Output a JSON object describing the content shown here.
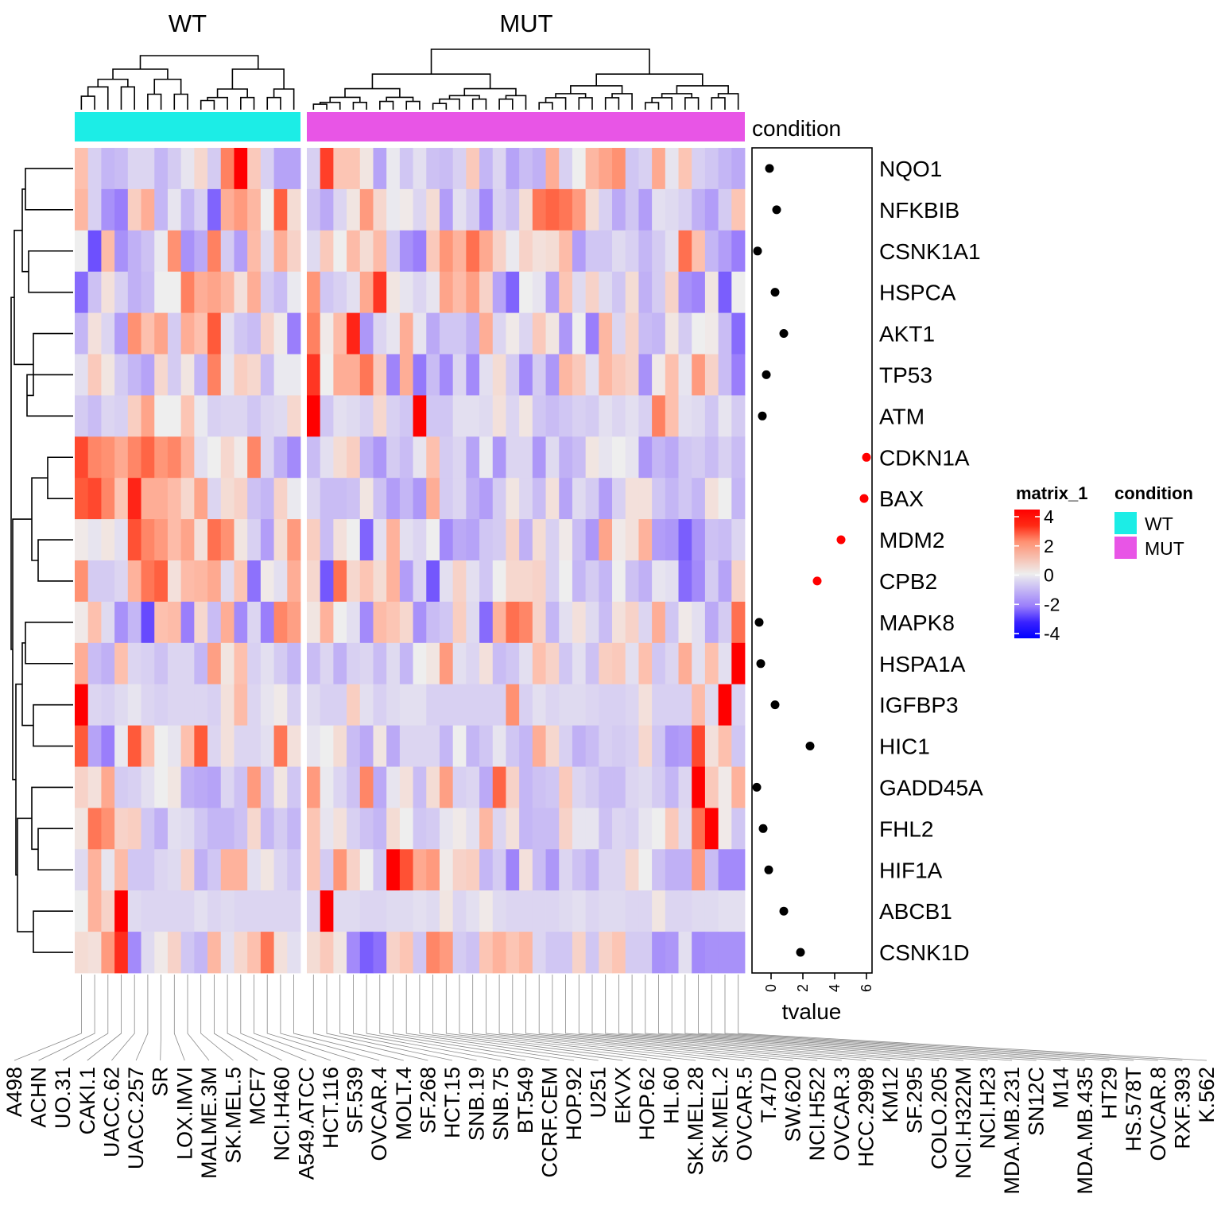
{
  "chart_data": {
    "type": "heatmap",
    "groups": [
      {
        "name": "WT",
        "color": "#1CEDE6"
      },
      {
        "name": "MUT",
        "color": "#E855E6"
      }
    ],
    "annotation_label": "condition",
    "columns_wt": [
      "A498",
      "ACHN",
      "UO.31",
      "CAKI.1",
      "UACC.62",
      "UACC.257",
      "SR",
      "LOX.IMVI",
      "MALME.3M",
      "SK.MEL.5",
      "MCF7",
      "NCI.H460",
      "A549.ATCC",
      "HCT.116",
      "SF.539",
      "OVCAR.4",
      "MOLT.4"
    ],
    "columns_mut": [
      "SF.268",
      "HCT.15",
      "SNB.19",
      "SNB.75",
      "BT.549",
      "CCRF.CEM",
      "HOP.92",
      "U251",
      "EKVX",
      "HOP.62",
      "HL.60",
      "SK.MEL.28",
      "SK.MEL.2",
      "OVCAR.5",
      "T.47D",
      "SW.620",
      "NCI.H522",
      "OVCAR.3",
      "HCC.2998",
      "KM12",
      "SF.295",
      "COLO.205",
      "NCI.H322M",
      "NCI.H23",
      "MDA.MB.231",
      "SN12C",
      "M14",
      "MDA.MB.435",
      "HT29",
      "HS.578T",
      "OVCAR.8",
      "RXF.393",
      "K.562"
    ],
    "rows": [
      "NQO1",
      "NFKBIB",
      "CSNK1A1",
      "HSPCA",
      "AKT1",
      "TP53",
      "ATM",
      "CDKN1A",
      "BAX",
      "MDM2",
      "CPB2",
      "MAPK8",
      "HSPA1A",
      "IGFBP3",
      "HIC1",
      "GADD45A",
      "FHL2",
      "HIF1A",
      "ABCB1",
      "CSNK1D"
    ],
    "matrix": [
      [
        1.0,
        -0.6,
        -1.1,
        -1.0,
        -0.5,
        -0.5,
        -1.1,
        -0.7,
        -0.2,
        0.5,
        -0.7,
        2.3,
        4,
        0.8,
        -0.6,
        -1.4,
        -1.4,
        -0.6,
        3.3,
        0.9,
        0.9,
        0.2,
        -1.4,
        -0.1,
        -0.8,
        -0.3,
        -0.9,
        -1.0,
        -0.6,
        0.8,
        -1.1,
        -0.5,
        -1.4,
        -1.0,
        -1.2,
        1.4,
        -0.6,
        0,
        1.2,
        1.6,
        2.0,
        -0.8,
        -0.6,
        1.5,
        -0.2,
        0.9,
        -0.6,
        -0.8,
        -1.1,
        -1.3
      ],
      [
        1.2,
        -0.6,
        -1.7,
        -2.0,
        0.7,
        1.4,
        -1.1,
        -0.2,
        -1.1,
        -0.6,
        -2.4,
        1.4,
        1.8,
        1.2,
        0,
        2.9,
        0.4,
        -0.9,
        -1.3,
        -0.5,
        0.2,
        1.8,
        0.5,
        -0.1,
        0.1,
        -0.5,
        0.4,
        -1.5,
        -0.3,
        -0.7,
        -1.8,
        -0.6,
        -0.9,
        0.4,
        2.5,
        2.8,
        2.5,
        1.8,
        0.4,
        -0.6,
        -1.3,
        -0.8,
        -1.5,
        -0.3,
        -0.4,
        -0.6,
        -1.2,
        -1.5,
        -0.7,
        0.9
      ],
      [
        0,
        -2.7,
        1.1,
        -1.7,
        -1.2,
        -0.9,
        -0.1,
        2.0,
        -1.7,
        -1.3,
        2.3,
        -0.7,
        -1.5,
        1.1,
        -0.4,
        1.4,
        0.6,
        -0.4,
        0.8,
        0,
        1.1,
        0.4,
        1.1,
        -0.7,
        -1.7,
        -2.0,
        0.8,
        1.9,
        1.3,
        2.6,
        1.5,
        0.6,
        -0.1,
        0.6,
        0.3,
        0.4,
        1.1,
        -1.5,
        -0.8,
        -0.8,
        -0.4,
        -0.6,
        -1.1,
        -0.7,
        -0.3,
        2.6,
        1.0,
        -1.1,
        -1.5,
        -2.0
      ],
      [
        -2.3,
        -0.9,
        0.3,
        -0.6,
        -1.2,
        -1.0,
        0,
        0,
        2.3,
        1.4,
        1.6,
        1.2,
        0.3,
        1.4,
        -0.7,
        -1.0,
        -0.1,
        1.9,
        -0.8,
        -0.6,
        -0.3,
        1.5,
        3.4,
        0.2,
        -0.2,
        -0.5,
        -0.2,
        1.6,
        1.1,
        1.7,
        0.6,
        -1.4,
        -2.4,
        0,
        -0.2,
        -1.5,
        0.9,
        -0.4,
        0.6,
        -0.4,
        -0.8,
        0.4,
        -1.2,
        -0.7,
        0.6,
        -1.7,
        -1.9,
        0.2,
        -2.5,
        0
      ],
      [
        -1.1,
        0.3,
        -0.5,
        -1.5,
        2.0,
        1.0,
        1.6,
        -0.7,
        1.4,
        1.0,
        3.0,
        -0.3,
        -0.8,
        -1.0,
        0.6,
        0.1,
        -2.0,
        2.3,
        0.1,
        1.1,
        3.6,
        -1.6,
        -0.5,
        -0.2,
        1.4,
        -0.2,
        -1.3,
        -0.8,
        -0.8,
        -1.2,
        1.4,
        -0.5,
        0.1,
        -0.5,
        0.8,
        0.2,
        -1.6,
        0,
        -2.0,
        1.2,
        -0.5,
        0.6,
        -1.0,
        -1.1,
        0.2,
        -0.7,
        0,
        0.1,
        -1.0,
        -2.3
      ],
      [
        -0.3,
        0.8,
        0.2,
        -0.7,
        -1.1,
        -1.4,
        0.5,
        -0.7,
        0.2,
        -1.1,
        2.3,
        -0.2,
        0.7,
        0.5,
        -1.0,
        -0.1,
        -0.1,
        3.4,
        0,
        1.4,
        1.4,
        2.5,
        0.8,
        -1.9,
        1.4,
        -2.1,
        -1.0,
        -1.8,
        -0.5,
        -1.8,
        -0.3,
        0.4,
        -0.7,
        -1.8,
        -0.7,
        -1.6,
        1.2,
        0.8,
        -0.3,
        1.2,
        0.8,
        0.6,
        -1.7,
        0.1,
        1.0,
        -0.2,
        1.8,
        0.6,
        -1.0,
        -2.0
      ],
      [
        -0.7,
        -1.0,
        -0.5,
        -0.6,
        0.7,
        1.6,
        0,
        0,
        0.9,
        -0.1,
        -0.6,
        -0.5,
        -0.5,
        -0.8,
        -0.5,
        -0.4,
        0.5,
        4,
        -0.8,
        -0.3,
        -0.4,
        -0.6,
        0.5,
        -0.6,
        -0.8,
        4,
        -0.8,
        -0.8,
        -0.3,
        -0.3,
        -0.4,
        0.3,
        -0.5,
        0.2,
        -0.8,
        -1.0,
        -0.8,
        -0.6,
        -0.7,
        -0.3,
        -0.5,
        -0.3,
        -0.6,
        2.3,
        1.0,
        -0.3,
        -0.4,
        -0.8,
        -0.2,
        -0.7
      ],
      [
        3.2,
        2.2,
        2.0,
        1.5,
        2.2,
        2.8,
        1.9,
        2.2,
        1.3,
        -0.3,
        0,
        0.5,
        0.1,
        2.2,
        -0.5,
        -1.2,
        -1.8,
        -1.0,
        -0.3,
        0.4,
        0.7,
        -1.2,
        -1.6,
        -0.7,
        -1.0,
        -0.2,
        1.0,
        -0.7,
        -0.5,
        -1.4,
        -0.1,
        -1.6,
        -0.5,
        -0.5,
        -1.6,
        -0.4,
        -1.2,
        -1.0,
        0.2,
        -0.2,
        0,
        -0.2,
        -1.6,
        -1.1,
        -1.3,
        -0.8,
        -0.7,
        -1.0,
        -0.6,
        -1.0
      ],
      [
        3.0,
        3.2,
        2.2,
        0.9,
        3.6,
        1.4,
        1.4,
        1.1,
        0.5,
        1.6,
        -0.5,
        0.4,
        0.6,
        -0.9,
        -1.1,
        0.6,
        -0.1,
        -0.5,
        -1.0,
        -1.0,
        -0.9,
        0.2,
        -0.9,
        -1.5,
        -1.1,
        -1.6,
        1.4,
        -0.7,
        -0.5,
        -1.2,
        -1.5,
        -0.7,
        0.2,
        -0.5,
        -1.0,
        0.3,
        -1.4,
        -0.4,
        -0.7,
        -1.5,
        -0.6,
        0.3,
        0.3,
        -0.8,
        -1.1,
        -0.8,
        -1.1,
        0.3,
        0,
        -1.1
      ],
      [
        0.1,
        -0.2,
        0.2,
        -0.3,
        3.1,
        2.2,
        1.8,
        1.1,
        1.6,
        0.3,
        2.6,
        2.0,
        0.2,
        -0.6,
        -1.5,
        0.4,
        1.8,
        0.7,
        -1.0,
        0.3,
        0,
        -2.4,
        -0.3,
        1.3,
        -0.3,
        -0.5,
        0,
        -1.8,
        -1.3,
        -1.4,
        -0.8,
        -0.7,
        0.6,
        -1.2,
        0.4,
        -0.6,
        0.1,
        -1.0,
        -1.6,
        1.6,
        0.1,
        0.3,
        1.3,
        -1.5,
        -1.6,
        -2.5,
        -1.7,
        -0.9,
        -1.0,
        -0.5
      ],
      [
        2.0,
        -0.7,
        -0.7,
        -0.5,
        1.3,
        2.5,
        2.9,
        0.3,
        1.1,
        1.2,
        1.5,
        -0.4,
        0.9,
        -2.2,
        0.1,
        -0.3,
        1.4,
        0.5,
        -2.6,
        2.6,
        0.5,
        0.9,
        0.4,
        1.3,
        -1.5,
        -0.5,
        -2.6,
        -0.3,
        0.6,
        -0.3,
        -0.8,
        0,
        0.5,
        0.5,
        0.6,
        -0.6,
        0,
        -1.1,
        -0.7,
        -1.1,
        0,
        -0.9,
        -1.2,
        -0.2,
        -0.3,
        -2.3,
        -1.8,
        -0.7,
        -1.4,
        0.6
      ],
      [
        0.1,
        1.0,
        -0.4,
        -1.7,
        -1.1,
        -2.8,
        1.0,
        1.1,
        -2.0,
        0.5,
        -1.0,
        1.4,
        -1.8,
        -0.5,
        -2.0,
        2.2,
        1.7,
        0.2,
        1.3,
        0,
        -0.3,
        -1.8,
        1.1,
        0.9,
        0.5,
        -1.7,
        -1.0,
        -0.8,
        0.7,
        -0.4,
        -2.3,
        1.3,
        2.6,
        2.2,
        0.6,
        -1.1,
        -0.3,
        0.3,
        -0.4,
        -1.0,
        0.3,
        0.6,
        -0.5,
        1.4,
        -0.8,
        0.1,
        -0.3,
        -1.3,
        -0.7,
        2.6
      ],
      [
        1.4,
        -1.0,
        -1.2,
        1.0,
        -0.5,
        -0.6,
        -0.9,
        -0.5,
        -0.5,
        -1.1,
        1.7,
        0.2,
        1.0,
        -0.6,
        -0.3,
        -0.7,
        -1.1,
        -1.0,
        -0.5,
        -1.2,
        -0.6,
        -0.5,
        -1.0,
        -0.4,
        -1.1,
        0,
        0.2,
        1.8,
        -0.3,
        -0.5,
        0.3,
        -1.0,
        -0.8,
        -0.3,
        1.0,
        0.6,
        -0.8,
        -0.3,
        -0.9,
        0.7,
        0.8,
        -0.3,
        1.0,
        -0.8,
        -0.5,
        1.4,
        -0.3,
        1.0,
        -0.3,
        4
      ],
      [
        4,
        -0.5,
        -0.6,
        -0.4,
        -0.2,
        -0.5,
        -0.6,
        -0.5,
        -0.5,
        -0.5,
        -0.6,
        0.3,
        1.1,
        -0.5,
        -0.2,
        0.1,
        -0.6,
        -0.4,
        -0.6,
        -0.6,
        0.7,
        -0.3,
        -0.6,
        -0.4,
        -0.3,
        -0.3,
        -0.6,
        -0.6,
        -0.6,
        -0.6,
        -0.6,
        -0.6,
        2.0,
        -0.6,
        -0.3,
        -0.5,
        -0.4,
        -0.4,
        -0.5,
        -0.6,
        -0.6,
        -0.5,
        0.3,
        -0.6,
        -0.6,
        -0.6,
        1.1,
        -0.4,
        4,
        -0.6
      ],
      [
        3.0,
        -1.4,
        -2.0,
        -0.1,
        3.0,
        1.0,
        0,
        -0.2,
        1.0,
        3.0,
        -0.5,
        0.3,
        -0.5,
        -0.5,
        -0.3,
        2.5,
        0.3,
        -0.2,
        0,
        0.4,
        -1.0,
        -1.3,
        0.2,
        -1.3,
        -0.5,
        -0.5,
        -0.5,
        -1.1,
        0,
        -1.1,
        -0.8,
        -0.2,
        -0.8,
        -1.1,
        1.4,
        0.5,
        -0.6,
        -1.2,
        -1.0,
        -0.6,
        -0.7,
        -0.6,
        0.5,
        -0.8,
        -1.6,
        -1.5,
        3.2,
        0.3,
        1.0,
        -0.8
      ],
      [
        0.6,
        0.3,
        1.5,
        -0.7,
        -0.6,
        -0.3,
        0,
        0.2,
        -1.2,
        -1.3,
        -1.4,
        -0.5,
        -0.9,
        1.8,
        -0.8,
        0.2,
        -0.8,
        1.8,
        -0.1,
        -0.5,
        -0.9,
        2.2,
        -1.3,
        -0.2,
        0.3,
        -1.0,
        0.4,
        1.7,
        -0.6,
        -0.5,
        -1.3,
        2.8,
        0.6,
        -1.1,
        -0.9,
        -0.8,
        0.8,
        -0.5,
        -0.7,
        -1.0,
        -1.0,
        -0.5,
        -0.4,
        -0.7,
        -1.1,
        -0.5,
        4,
        0.8,
        0.1,
        1.3
      ],
      [
        0.2,
        2.5,
        2.0,
        0.6,
        0.7,
        -0.8,
        -1.2,
        -0.3,
        -0.4,
        -0.8,
        -1.1,
        -1.1,
        -0.9,
        0.5,
        -1.1,
        -0.7,
        -1.1,
        0.9,
        -0.2,
        0.3,
        -0.6,
        -0.9,
        -1.1,
        0.4,
        0,
        -0.8,
        -0.7,
        -0.2,
        0.1,
        -0.3,
        1.2,
        -0.5,
        0.3,
        -1.1,
        -1.0,
        -1.0,
        0.6,
        -0.2,
        -0.2,
        -0.9,
        -0.5,
        -0.6,
        -0.2,
        0,
        0.8,
        -0.4,
        2.6,
        4,
        0.1,
        -0.8
      ],
      [
        -0.4,
        1.3,
        -0.2,
        1.1,
        -0.8,
        -0.8,
        -0.5,
        -0.4,
        0.6,
        -1.2,
        -0.8,
        1.3,
        1.3,
        -0.3,
        0.2,
        -0.5,
        -0.8,
        0.9,
        -0.7,
        1.9,
        0.6,
        0,
        -0.8,
        4,
        3.1,
        1.5,
        1.8,
        0.1,
        0.6,
        0.7,
        -1.1,
        -0.7,
        -1.9,
        0.3,
        -1.0,
        -1.6,
        -0.5,
        -0.9,
        -1.2,
        -0.5,
        -0.5,
        0.5,
        0,
        -0.9,
        -1.2,
        -1.2,
        1.8,
        -1.0,
        -1.8,
        -1.8
      ],
      [
        0,
        1.3,
        0.6,
        4,
        -0.4,
        -0.5,
        -0.5,
        -0.5,
        -0.5,
        -0.3,
        -0.5,
        -0.4,
        -0.5,
        -0.5,
        -0.5,
        -0.5,
        -0.5,
        -0.5,
        4,
        -0.4,
        -0.4,
        -0.5,
        -0.5,
        -0.4,
        -0.4,
        -0.3,
        -0.4,
        0.2,
        -0.5,
        -0.3,
        0.1,
        -0.4,
        -0.5,
        -0.5,
        -0.5,
        -0.5,
        -0.4,
        -0.3,
        -0.5,
        -0.4,
        -0.4,
        -0.5,
        -0.5,
        0.2,
        -0.5,
        -0.5,
        -0.4,
        -0.4,
        -0.3,
        -0.3
      ],
      [
        0.4,
        0.3,
        1.8,
        3.5,
        -1.8,
        -0.4,
        0.1,
        0.6,
        -0.8,
        -1.1,
        1.2,
        -0.3,
        0.5,
        1.0,
        2.5,
        0.3,
        -0.3,
        0.4,
        0.8,
        0.2,
        -1.8,
        -2.5,
        -2.2,
        0.6,
        0.9,
        -0.8,
        2.2,
        1.8,
        -0.7,
        -0.9,
        0.9,
        1.3,
        0.9,
        1.2,
        -0.5,
        -0.8,
        -0.8,
        0.6,
        -0.8,
        0.6,
        0.9,
        -0.7,
        -0.7,
        -1.7,
        -1.6,
        -0.3,
        -1.8,
        -1.7,
        -1.7,
        -1.7
      ]
    ],
    "color_scale": {
      "title": "matrix_1",
      "range": [
        -4,
        4
      ],
      "ticks": [
        "4",
        "2",
        "0",
        "-2",
        "-4"
      ],
      "low": "#0000FF",
      "mid": "#EEEEEE",
      "high": "#FF0000"
    },
    "condition_legend": {
      "title": "condition",
      "items": [
        {
          "label": "WT",
          "color": "#1CEDE6"
        },
        {
          "label": "MUT",
          "color": "#E855E6"
        }
      ]
    },
    "tvalue_panel": {
      "type": "scatter",
      "xlabel": "tvalue",
      "xticks": [
        "0",
        "2",
        "4",
        "6"
      ],
      "xlim": [
        -1.2,
        6.35
      ],
      "values": [
        -0.1,
        0.35,
        -0.85,
        0.25,
        0.8,
        -0.3,
        -0.55,
        6.0,
        5.85,
        4.4,
        2.9,
        -0.75,
        -0.65,
        0.25,
        2.45,
        -0.9,
        -0.5,
        -0.15,
        0.8,
        1.85
      ],
      "point_colors": [
        "#000000",
        "#000000",
        "#000000",
        "#000000",
        "#000000",
        "#000000",
        "#000000",
        "#FF0000",
        "#FF0000",
        "#FF0000",
        "#FF0000",
        "#000000",
        "#000000",
        "#000000",
        "#000000",
        "#000000",
        "#000000",
        "#000000",
        "#000000",
        "#000000"
      ]
    }
  }
}
